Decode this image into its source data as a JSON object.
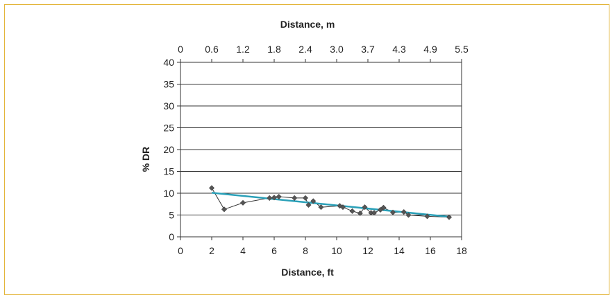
{
  "chart_data": {
    "type": "scatter",
    "title": "",
    "xlabel": "Distance, ft",
    "x2label": "Distance, m",
    "ylabel": "% DR",
    "xlim": [
      0,
      18
    ],
    "ylim": [
      0,
      40
    ],
    "x_ticks": [
      "0",
      "2",
      "4",
      "6",
      "8",
      "10",
      "12",
      "14",
      "16",
      "18"
    ],
    "x2_ticks": [
      "0",
      "0.6",
      "1.2",
      "1.8",
      "2.4",
      "3.0",
      "3.7",
      "4.3",
      "4.9",
      "5.5"
    ],
    "y_ticks": [
      "0",
      "5",
      "10",
      "15",
      "20",
      "25",
      "30",
      "35",
      "40"
    ],
    "grid": "horizontal",
    "colors": {
      "points": "#555555",
      "connector": "#333333",
      "trend": "#2aa0b8",
      "frame": "#e3b53a"
    },
    "series": [
      {
        "points": [
          [
            2.0,
            11.2
          ],
          [
            2.8,
            6.3
          ],
          [
            4.0,
            7.8
          ],
          [
            5.7,
            8.9
          ],
          [
            6.0,
            9.0
          ],
          [
            6.3,
            9.2
          ],
          [
            7.3,
            8.9
          ],
          [
            8.0,
            8.9
          ],
          [
            8.2,
            7.3
          ],
          [
            8.5,
            8.2
          ],
          [
            9.0,
            6.8
          ],
          [
            10.2,
            7.1
          ],
          [
            10.4,
            6.8
          ],
          [
            11.0,
            5.9
          ],
          [
            11.5,
            5.4
          ],
          [
            11.8,
            6.8
          ],
          [
            12.2,
            5.5
          ],
          [
            12.4,
            5.5
          ],
          [
            12.8,
            6.2
          ],
          [
            13.0,
            6.7
          ],
          [
            13.6,
            5.6
          ],
          [
            14.3,
            5.7
          ],
          [
            14.6,
            5.0
          ],
          [
            15.8,
            4.7
          ],
          [
            17.2,
            4.5
          ]
        ]
      }
    ],
    "trendline": {
      "x": [
        2,
        17.2
      ],
      "y": [
        10.1,
        4.6
      ]
    }
  }
}
